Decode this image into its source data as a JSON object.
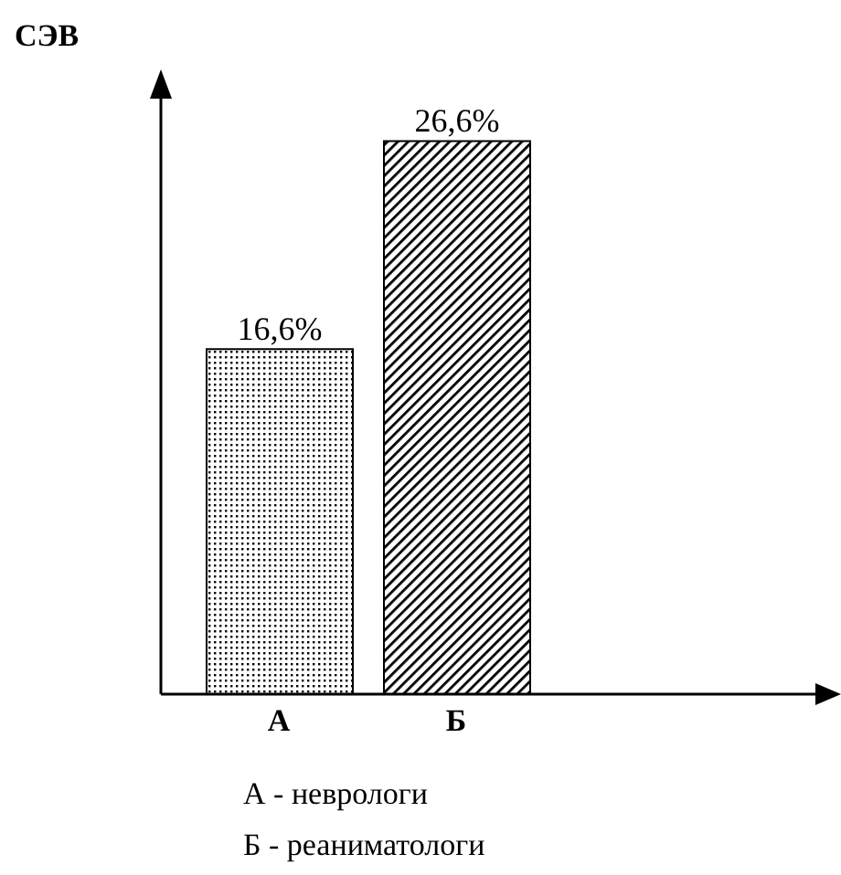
{
  "chart_data": {
    "type": "bar",
    "ylabel": "СЭВ",
    "categories": [
      "А",
      "Б"
    ],
    "values": [
      16.6,
      26.6
    ],
    "value_labels": [
      "16,6%",
      "26,6%"
    ],
    "colors": [
      "#000000",
      "#000000"
    ],
    "annotations": [
      "А - неврологи",
      "Б - реаниматологи"
    ]
  }
}
